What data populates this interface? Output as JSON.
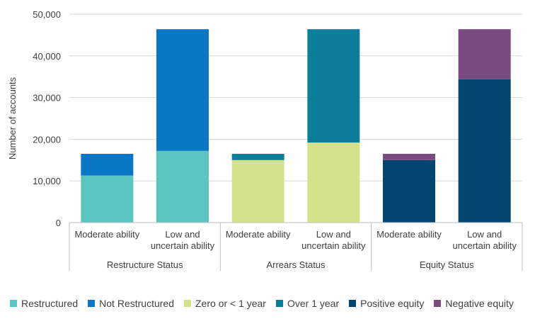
{
  "chart_data": {
    "type": "bar",
    "stacked": true,
    "ylabel": "Number of accounts",
    "ylim": [
      0,
      50000
    ],
    "yticks": [
      {
        "value": 0,
        "label": "0"
      },
      {
        "value": 10000,
        "label": "10,000"
      },
      {
        "value": 20000,
        "label": "20,000"
      },
      {
        "value": 30000,
        "label": "30,000"
      },
      {
        "value": 40000,
        "label": "40,000"
      },
      {
        "value": 50000,
        "label": "50,000"
      }
    ],
    "grid": true,
    "legend_position": "bottom",
    "groups": [
      {
        "label": "Restructure Status",
        "bars": [
          {
            "label": [
              "Moderate ability"
            ],
            "segments": [
              {
                "series": "Restructured",
                "value": 11300
              },
              {
                "series": "Not Restructured",
                "value": 5200
              }
            ]
          },
          {
            "label": [
              "Low and",
              "uncertain ability"
            ],
            "segments": [
              {
                "series": "Restructured",
                "value": 17200
              },
              {
                "series": "Not Restructured",
                "value": 29200
              }
            ]
          }
        ]
      },
      {
        "label": "Arrears Status",
        "bars": [
          {
            "label": [
              "Moderate ability"
            ],
            "segments": [
              {
                "series": "Zero or < 1 year",
                "value": 15000
              },
              {
                "series": "Over 1 year",
                "value": 1500
              }
            ]
          },
          {
            "label": [
              "Low and",
              "uncertain ability"
            ],
            "segments": [
              {
                "series": "Zero or < 1 year",
                "value": 19200
              },
              {
                "series": "Over 1 year",
                "value": 27200
              }
            ]
          }
        ]
      },
      {
        "label": "Equity Status",
        "bars": [
          {
            "label": [
              "Moderate ability"
            ],
            "segments": [
              {
                "series": "Positive equity",
                "value": 15000
              },
              {
                "series": "Negative equity",
                "value": 1500
              }
            ]
          },
          {
            "label": [
              "Low and",
              "uncertain ability"
            ],
            "segments": [
              {
                "series": "Positive equity",
                "value": 34400
              },
              {
                "series": "Negative equity",
                "value": 12000
              }
            ]
          }
        ]
      }
    ],
    "legend": [
      {
        "name": "Restructured",
        "color": "#5BC5C2"
      },
      {
        "name": "Not Restructured",
        "color": "#0A77C4"
      },
      {
        "name": "Zero or < 1 year",
        "color": "#D4E28C"
      },
      {
        "name": "Over 1 year",
        "color": "#0C7E9C"
      },
      {
        "name": "Positive equity",
        "color": "#00466E"
      },
      {
        "name": "Negative equity",
        "color": "#7B4A80"
      }
    ]
  }
}
